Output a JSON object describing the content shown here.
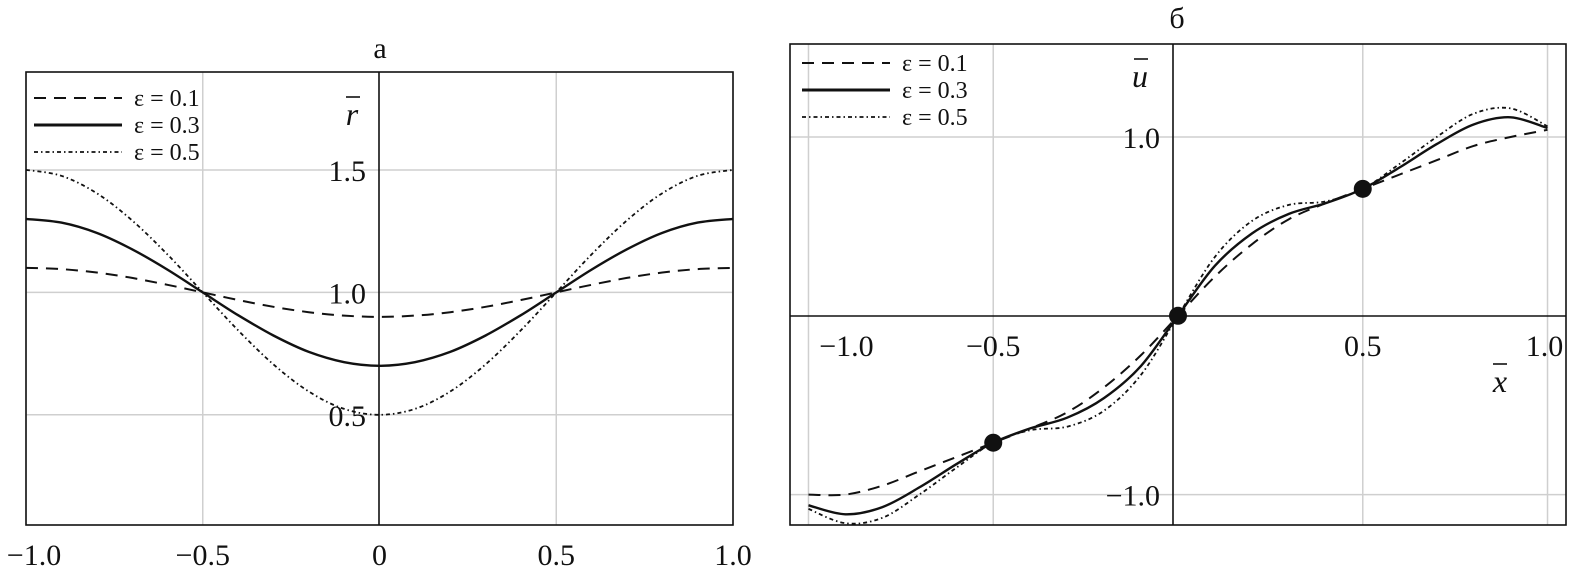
{
  "chart_data": [
    {
      "id": "a",
      "type": "line",
      "panel_label": "а",
      "ylabel": "r",
      "xlabel": "",
      "xlim": [
        -1.0,
        1.0
      ],
      "ylim": [
        0.05,
        1.9
      ],
      "x_ticks": [
        "−1.0",
        "−0.5",
        "0",
        "0.5",
        "1.0"
      ],
      "x_tick_values": [
        -1.0,
        -0.5,
        0,
        0.5,
        1.0
      ],
      "y_ticks": [
        "0.5",
        "1.0",
        "1.5"
      ],
      "y_tick_values": [
        0.5,
        1.0,
        1.5
      ],
      "grid": true,
      "legend_position": "top-left",
      "series": [
        {
          "name": "ε = 0.1",
          "style": "dashed",
          "x": [
            -1.0,
            -0.9,
            -0.8,
            -0.7,
            -0.6,
            -0.5,
            -0.4,
            -0.3,
            -0.2,
            -0.1,
            0.0,
            0.1,
            0.2,
            0.3,
            0.4,
            0.5,
            0.6,
            0.7,
            0.8,
            0.9,
            1.0
          ],
          "y": [
            1.1,
            1.095,
            1.081,
            1.059,
            1.031,
            1.0,
            0.969,
            0.941,
            0.919,
            0.905,
            0.9,
            0.905,
            0.919,
            0.941,
            0.969,
            1.0,
            1.031,
            1.059,
            1.081,
            1.095,
            1.1
          ]
        },
        {
          "name": "ε = 0.3",
          "style": "solid",
          "x": [
            -1.0,
            -0.9,
            -0.8,
            -0.7,
            -0.6,
            -0.5,
            -0.4,
            -0.3,
            -0.2,
            -0.1,
            0.0,
            0.1,
            0.2,
            0.3,
            0.4,
            0.5,
            0.6,
            0.7,
            0.8,
            0.9,
            1.0
          ],
          "y": [
            1.3,
            1.285,
            1.243,
            1.176,
            1.093,
            1.0,
            0.907,
            0.824,
            0.757,
            0.715,
            0.7,
            0.715,
            0.757,
            0.824,
            0.907,
            1.0,
            1.093,
            1.176,
            1.243,
            1.285,
            1.3
          ]
        },
        {
          "name": "ε = 0.5",
          "style": "dotted",
          "x": [
            -1.0,
            -0.9,
            -0.8,
            -0.7,
            -0.6,
            -0.5,
            -0.4,
            -0.3,
            -0.2,
            -0.1,
            0.0,
            0.1,
            0.2,
            0.3,
            0.4,
            0.5,
            0.6,
            0.7,
            0.8,
            0.9,
            1.0
          ],
          "y": [
            1.5,
            1.476,
            1.405,
            1.294,
            1.155,
            1.0,
            0.845,
            0.706,
            0.595,
            0.524,
            0.5,
            0.524,
            0.595,
            0.706,
            0.845,
            1.0,
            1.155,
            1.294,
            1.405,
            1.476,
            1.5
          ]
        }
      ]
    },
    {
      "id": "b",
      "type": "line",
      "panel_label": "б",
      "ylabel": "u",
      "xlabel": "x",
      "xlim": [
        -1.05,
        1.05
      ],
      "ylim": [
        -1.17,
        1.52
      ],
      "x_ticks": [
        "−1.0",
        "−0.5",
        "0.5",
        "1.0"
      ],
      "x_tick_values": [
        -1.0,
        -0.5,
        0.5,
        1.0
      ],
      "y_ticks": [
        "−1.0",
        "1.0"
      ],
      "y_tick_values": [
        -1.0,
        1.0
      ],
      "grid": true,
      "legend_position": "top-left",
      "markers": [
        {
          "x": -0.5,
          "y": -0.71
        },
        {
          "x": 0.0,
          "y": 0.0
        },
        {
          "x": 0.5,
          "y": 0.71
        }
      ],
      "series": [
        {
          "name": "ε = 0.1",
          "style": "dashed",
          "x": [
            -1.0,
            -0.9,
            -0.8,
            -0.7,
            -0.6,
            -0.5,
            -0.4,
            -0.3,
            -0.2,
            -0.1,
            0.0,
            0.1,
            0.2,
            0.3,
            0.4,
            0.5,
            0.6,
            0.7,
            0.8,
            0.9,
            1.0
          ],
          "y": [
            -1.0,
            -1.0,
            -0.95,
            -0.87,
            -0.79,
            -0.71,
            -0.63,
            -0.54,
            -0.4,
            -0.22,
            0.0,
            0.22,
            0.4,
            0.54,
            0.63,
            0.71,
            0.79,
            0.87,
            0.95,
            1.0,
            1.04
          ]
        },
        {
          "name": "ε = 0.3",
          "style": "solid",
          "x": [
            -1.0,
            -0.9,
            -0.8,
            -0.7,
            -0.6,
            -0.5,
            -0.4,
            -0.3,
            -0.2,
            -0.1,
            0.0,
            0.1,
            0.2,
            0.3,
            0.4,
            0.5,
            0.6,
            0.7,
            0.8,
            0.9,
            1.0
          ],
          "y": [
            -1.06,
            -1.11,
            -1.07,
            -0.96,
            -0.83,
            -0.71,
            -0.63,
            -0.57,
            -0.46,
            -0.28,
            0.0,
            0.28,
            0.46,
            0.57,
            0.63,
            0.71,
            0.83,
            0.96,
            1.07,
            1.11,
            1.05
          ]
        },
        {
          "name": "ε = 0.5",
          "style": "dotted",
          "x": [
            -1.0,
            -0.9,
            -0.8,
            -0.7,
            -0.6,
            -0.5,
            -0.4,
            -0.3,
            -0.2,
            -0.1,
            0.0,
            0.1,
            0.2,
            0.3,
            0.4,
            0.5,
            0.6,
            0.7,
            0.8,
            0.9,
            1.0
          ],
          "y": [
            -1.08,
            -1.16,
            -1.13,
            -1.0,
            -0.85,
            -0.71,
            -0.64,
            -0.62,
            -0.53,
            -0.33,
            0.0,
            0.33,
            0.53,
            0.62,
            0.64,
            0.71,
            0.85,
            1.0,
            1.13,
            1.16,
            1.06
          ]
        }
      ]
    }
  ]
}
